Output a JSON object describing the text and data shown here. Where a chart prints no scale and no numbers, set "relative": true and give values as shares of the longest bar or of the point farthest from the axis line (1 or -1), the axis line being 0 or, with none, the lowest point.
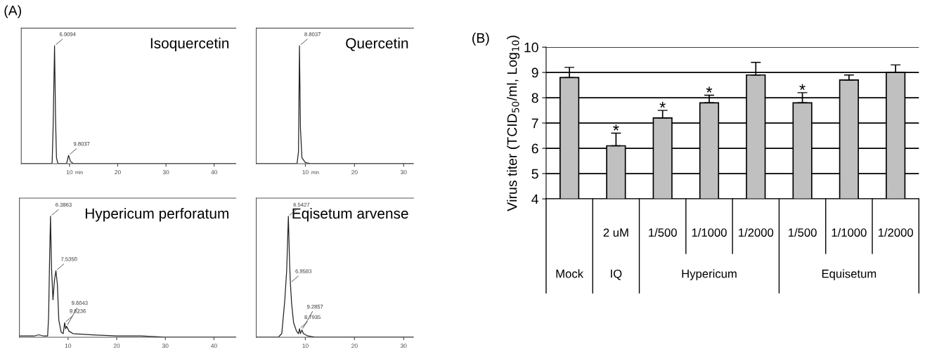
{
  "chart_data": [
    {
      "type": "line",
      "title": "Isoquercetin",
      "xlabel": "min",
      "relative": true,
      "tick_labels": "x",
      "color": "#222222",
      "xlim": [
        0,
        44.5
      ],
      "xticks": [
        10,
        20,
        30,
        40
      ],
      "x": [
        0,
        6.2,
        6.4,
        6.6,
        6.9,
        7.1,
        7.3,
        7.6,
        9.4,
        9.8,
        10.2,
        10.8,
        44.5
      ],
      "values": [
        0,
        0,
        0.01,
        0.3,
        1.0,
        0.4,
        0.05,
        0,
        0,
        0.07,
        0.02,
        0,
        0
      ],
      "annotations": [
        "(A)",
        {
          "text": "6.9094",
          "x": 6.9,
          "y": 1.0
        },
        {
          "text": "9.8037",
          "x": 9.8,
          "y": 0.07
        }
      ]
    },
    {
      "type": "line",
      "title": "Quercetin",
      "xlabel": "min",
      "relative": true,
      "tick_labels": "x",
      "color": "#222222",
      "xlim": [
        0,
        32
      ],
      "xticks": [
        10,
        20,
        30
      ],
      "x": [
        0,
        8.3,
        8.6,
        8.8,
        9.0,
        9.3,
        10,
        11,
        32
      ],
      "values": [
        0,
        0,
        0.1,
        1.0,
        0.3,
        0.05,
        0.01,
        0,
        0
      ],
      "annotations": [
        {
          "text": "8.8037",
          "x": 8.8,
          "y": 1.0
        }
      ]
    },
    {
      "type": "line",
      "title": "Hypericum perforatum",
      "relative": true,
      "tick_labels": "x",
      "color": "#222222",
      "xlim": [
        0,
        44.5
      ],
      "xticks": [
        10,
        20,
        30,
        40
      ],
      "x": [
        0,
        3,
        4,
        5,
        5.8,
        6.0,
        6.2,
        6.39,
        6.6,
        6.9,
        7.2,
        7.5,
        7.8,
        8.1,
        8.6,
        9.0,
        9.3,
        9.5,
        9.7,
        10.2,
        11,
        15,
        20,
        25,
        30,
        35,
        40,
        44.5
      ],
      "values": [
        0.01,
        0.01,
        0.02,
        0.01,
        0.01,
        0.17,
        0.64,
        1.0,
        0.57,
        0.31,
        0.47,
        0.55,
        0.44,
        0.14,
        0.04,
        0.03,
        0.12,
        0.07,
        0.09,
        0.05,
        0.03,
        0.02,
        0.01,
        0.01,
        0,
        0,
        0,
        0
      ],
      "annotations": [
        {
          "text": "6.3863",
          "x": 6.39,
          "y": 1.0
        },
        {
          "text": "7.5350",
          "x": 7.5,
          "y": 0.55
        },
        {
          "text": "9.6236",
          "x": 9.3,
          "y": 0.12
        },
        {
          "text": "9.6043",
          "x": 9.7,
          "y": 0.09
        }
      ]
    },
    {
      "type": "line",
      "title": "Eqisetum arvense",
      "relative": true,
      "tick_labels": "x",
      "color": "#222222",
      "xlim": [
        0,
        32
      ],
      "xticks": [
        10,
        20,
        30
      ],
      "x": [
        0,
        4.5,
        5.2,
        5.8,
        6.2,
        6.54,
        6.8,
        6.95,
        7.2,
        7.6,
        8.2,
        8.6,
        8.8,
        9.0,
        9.3,
        9.6,
        10.5,
        12,
        32
      ],
      "values": [
        0,
        0,
        0.03,
        0.3,
        0.55,
        1.0,
        0.6,
        0.45,
        0.28,
        0.12,
        0.05,
        0.03,
        0.07,
        0.03,
        0.06,
        0.03,
        0.01,
        0,
        0
      ],
      "annotations": [
        {
          "text": "6.5427",
          "x": 6.54,
          "y": 1.0
        },
        {
          "text": "6.9583",
          "x": 6.95,
          "y": 0.45
        },
        {
          "text": "8.7935",
          "x": 8.8,
          "y": 0.07
        },
        {
          "text": "9.2857",
          "x": 9.3,
          "y": 0.06
        }
      ]
    },
    {
      "type": "bar",
      "title": "(B)",
      "ylabel": "Virus titer (TCID$_{50}$/ml, Log$_{10}$)",
      "color": "#c0c0c0",
      "ylim": [
        4,
        10
      ],
      "yticks": [
        4,
        5,
        6,
        7,
        8,
        9,
        10
      ],
      "grid": "y",
      "categories": [
        null,
        "2 uM",
        "1/500",
        "1/1000",
        "1/2000",
        "1/500",
        "1/1000",
        "1/2000"
      ],
      "values": [
        8.8,
        6.1,
        7.2,
        7.8,
        8.9,
        7.8,
        8.7,
        9.0
      ],
      "errors": [
        [
          8.8,
          9.2
        ],
        [
          6.1,
          6.6
        ],
        [
          7.2,
          7.5
        ],
        [
          7.8,
          8.1
        ],
        [
          8.9,
          9.4
        ],
        [
          7.8,
          8.2
        ],
        [
          8.7,
          8.9
        ],
        [
          9.0,
          9.3
        ]
      ],
      "value_labels": [
        null,
        "*",
        "*",
        "*",
        null,
        "*",
        null,
        null
      ],
      "annotations": [
        "Mock",
        "IQ",
        "Hypericum",
        "Equisetum"
      ]
    }
  ]
}
